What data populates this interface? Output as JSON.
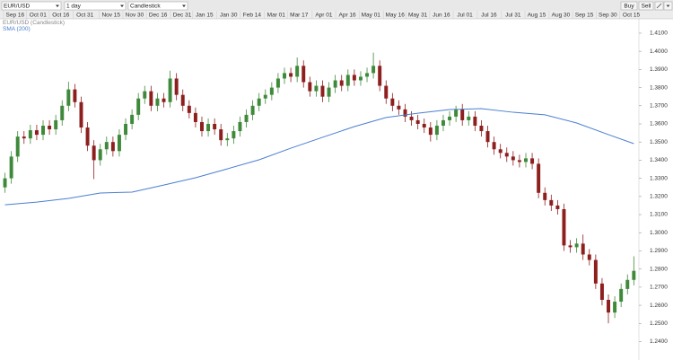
{
  "toolbar": {
    "symbol": "EUR/USD",
    "interval": "1 day",
    "chart_type": "Candlestick",
    "buy": "Buy",
    "sell": "Sell"
  },
  "chart_data": {
    "type": "candlestick",
    "series": [
      {
        "name": "EUR/USD (Candlestick)",
        "up_color": "#3f8a3a",
        "down_color": "#8e1f1f",
        "open": [
          1.325,
          1.33,
          1.342,
          1.353,
          1.352,
          1.3565,
          1.354,
          1.359,
          1.357,
          1.362,
          1.37,
          1.379,
          1.372,
          1.358,
          1.348,
          1.34,
          1.346,
          1.35,
          1.345,
          1.354,
          1.36,
          1.365,
          1.374,
          1.378,
          1.37,
          1.374,
          1.372,
          1.385,
          1.376,
          1.37,
          1.366,
          1.361,
          1.356,
          1.36,
          1.357,
          1.351,
          1.352,
          1.356,
          1.361,
          1.365,
          1.37,
          1.374,
          1.376,
          1.38,
          1.385,
          1.388,
          1.386,
          1.392,
          1.383,
          1.378,
          1.381,
          1.375,
          1.38,
          1.384,
          1.381,
          1.387,
          1.384,
          1.386,
          1.388,
          1.392,
          1.381,
          1.374,
          1.37,
          1.368,
          1.364,
          1.362,
          1.36,
          1.358,
          1.354,
          1.359,
          1.362,
          1.364,
          1.368,
          1.362,
          1.364,
          1.359,
          1.356,
          1.35,
          1.346,
          1.344,
          1.342,
          1.34,
          1.339,
          1.341,
          1.338,
          1.322,
          1.318,
          1.315,
          1.313,
          1.293,
          1.292,
          1.294,
          1.288,
          1.285,
          1.272,
          1.263,
          1.256,
          1.262,
          1.269,
          1.274
        ],
        "high": [
          1.333,
          1.345,
          1.356,
          1.356,
          1.3595,
          1.3595,
          1.362,
          1.362,
          1.365,
          1.373,
          1.3832,
          1.382,
          1.375,
          1.361,
          1.351,
          1.349,
          1.353,
          1.353,
          1.357,
          1.363,
          1.368,
          1.377,
          1.381,
          1.381,
          1.377,
          1.377,
          1.3893,
          1.388,
          1.379,
          1.373,
          1.369,
          1.364,
          1.363,
          1.363,
          1.36,
          1.355,
          1.359,
          1.364,
          1.368,
          1.373,
          1.377,
          1.379,
          1.383,
          1.388,
          1.391,
          1.391,
          1.3966,
          1.395,
          1.386,
          1.384,
          1.384,
          1.383,
          1.387,
          1.387,
          1.39,
          1.39,
          1.389,
          1.391,
          1.3993,
          1.395,
          1.384,
          1.377,
          1.373,
          1.371,
          1.367,
          1.365,
          1.363,
          1.361,
          1.362,
          1.365,
          1.367,
          1.37,
          1.371,
          1.367,
          1.367,
          1.362,
          1.359,
          1.353,
          1.349,
          1.347,
          1.345,
          1.343,
          1.344,
          1.344,
          1.341,
          1.325,
          1.321,
          1.318,
          1.316,
          1.296,
          1.297,
          1.299,
          1.291,
          1.288,
          1.275,
          1.266,
          1.265,
          1.272,
          1.277,
          1.287
        ],
        "low": [
          1.322,
          1.327,
          1.339,
          1.349,
          1.349,
          1.351,
          1.351,
          1.354,
          1.354,
          1.359,
          1.367,
          1.369,
          1.355,
          1.345,
          1.3296,
          1.337,
          1.343,
          1.342,
          1.342,
          1.351,
          1.357,
          1.362,
          1.371,
          1.367,
          1.367,
          1.369,
          1.369,
          1.373,
          1.367,
          1.363,
          1.358,
          1.353,
          1.353,
          1.354,
          1.348,
          1.3477,
          1.349,
          1.353,
          1.358,
          1.362,
          1.367,
          1.371,
          1.373,
          1.377,
          1.382,
          1.383,
          1.383,
          1.38,
          1.375,
          1.375,
          1.372,
          1.372,
          1.377,
          1.378,
          1.378,
          1.381,
          1.381,
          1.383,
          1.385,
          1.378,
          1.371,
          1.367,
          1.365,
          1.361,
          1.359,
          1.357,
          1.355,
          1.3503,
          1.351,
          1.356,
          1.359,
          1.361,
          1.359,
          1.359,
          1.356,
          1.353,
          1.347,
          1.343,
          1.341,
          1.339,
          1.337,
          1.336,
          1.336,
          1.335,
          1.319,
          1.315,
          1.312,
          1.31,
          1.29,
          1.289,
          1.289,
          1.285,
          1.282,
          1.269,
          1.26,
          1.2501,
          1.253,
          1.259,
          1.266,
          1.271
        ],
        "close": [
          1.33,
          1.342,
          1.353,
          1.352,
          1.3565,
          1.354,
          1.359,
          1.357,
          1.362,
          1.37,
          1.379,
          1.372,
          1.358,
          1.348,
          1.34,
          1.346,
          1.35,
          1.345,
          1.354,
          1.36,
          1.365,
          1.374,
          1.378,
          1.37,
          1.374,
          1.372,
          1.385,
          1.376,
          1.37,
          1.366,
          1.361,
          1.356,
          1.36,
          1.357,
          1.351,
          1.352,
          1.356,
          1.361,
          1.365,
          1.37,
          1.374,
          1.376,
          1.38,
          1.385,
          1.388,
          1.386,
          1.392,
          1.383,
          1.378,
          1.381,
          1.375,
          1.38,
          1.384,
          1.381,
          1.387,
          1.384,
          1.386,
          1.388,
          1.392,
          1.381,
          1.374,
          1.37,
          1.368,
          1.364,
          1.362,
          1.36,
          1.358,
          1.354,
          1.359,
          1.362,
          1.364,
          1.368,
          1.362,
          1.364,
          1.359,
          1.356,
          1.35,
          1.346,
          1.344,
          1.342,
          1.34,
          1.339,
          1.341,
          1.338,
          1.322,
          1.318,
          1.315,
          1.313,
          1.293,
          1.292,
          1.294,
          1.288,
          1.285,
          1.272,
          1.263,
          1.256,
          1.262,
          1.269,
          1.274,
          1.279
        ]
      },
      {
        "name": "SMA (200)",
        "type": "line",
        "color": "#4a7fd0",
        "x": [
          0,
          5,
          10,
          15,
          20,
          25,
          30,
          35,
          40,
          45,
          50,
          55,
          60,
          65,
          70,
          75,
          80,
          85,
          90,
          95,
          99
        ],
        "values": [
          1.3154,
          1.3169,
          1.3189,
          1.3219,
          1.3224,
          1.3263,
          1.3303,
          1.3352,
          1.3402,
          1.3466,
          1.3526,
          1.3585,
          1.3635,
          1.3659,
          1.3679,
          1.3684,
          1.3664,
          1.365,
          1.3605,
          1.3541,
          1.3491
        ]
      }
    ],
    "xlim": [
      -0.5,
      99.8
    ],
    "xticks": [
      {
        "value": 1.6,
        "label": "Sep 16"
      },
      {
        "value": 5.2,
        "label": "Oct 01"
      },
      {
        "value": 8.8,
        "label": "Oct 16"
      },
      {
        "value": 12.6,
        "label": "Oct 31"
      },
      {
        "value": 16.7,
        "label": "Nov 15"
      },
      {
        "value": 20.4,
        "label": "Nov 30"
      },
      {
        "value": 24.1,
        "label": "Dec 16"
      },
      {
        "value": 27.9,
        "label": "Dec 31"
      },
      {
        "value": 31.4,
        "label": "Jan 15"
      },
      {
        "value": 35.2,
        "label": "Jan 30"
      },
      {
        "value": 38.9,
        "label": "Feb 14"
      },
      {
        "value": 42.7,
        "label": "Mar 01"
      },
      {
        "value": 46.3,
        "label": "Mar 17"
      },
      {
        "value": 50.2,
        "label": "Apr 01"
      },
      {
        "value": 53.9,
        "label": "Apr 16"
      },
      {
        "value": 57.6,
        "label": "May 01"
      },
      {
        "value": 61.4,
        "label": "May 16"
      },
      {
        "value": 65.0,
        "label": "May 31"
      },
      {
        "value": 68.7,
        "label": "Jun 16"
      },
      {
        "value": 72.4,
        "label": "Jul 01"
      },
      {
        "value": 76.2,
        "label": "Jul 16"
      },
      {
        "value": 80.0,
        "label": "Jul 31"
      },
      {
        "value": 83.7,
        "label": "Aug 15"
      },
      {
        "value": 87.5,
        "label": "Aug 30"
      },
      {
        "value": 91.2,
        "label": "Sep 15"
      },
      {
        "value": 94.9,
        "label": "Sep 30"
      },
      {
        "value": 98.6,
        "label": "Oct 15"
      }
    ],
    "ylim": [
      1.2343,
      1.4174
    ],
    "yticks": [
      {
        "value": 1.41,
        "label": "1.4100"
      },
      {
        "value": 1.4,
        "label": "1.4000"
      },
      {
        "value": 1.39,
        "label": "1.3900"
      },
      {
        "value": 1.38,
        "label": "1.3800"
      },
      {
        "value": 1.37,
        "label": "1.3700"
      },
      {
        "value": 1.36,
        "label": "1.3600"
      },
      {
        "value": 1.35,
        "label": "1.3500"
      },
      {
        "value": 1.34,
        "label": "1.3400"
      },
      {
        "value": 1.33,
        "label": "1.3300"
      },
      {
        "value": 1.32,
        "label": "1.3200"
      },
      {
        "value": 1.31,
        "label": "1.3100"
      },
      {
        "value": 1.3,
        "label": "1.3000"
      },
      {
        "value": 1.29,
        "label": "1.2900"
      },
      {
        "value": 1.28,
        "label": "1.2800"
      },
      {
        "value": 1.27,
        "label": "1.2700"
      },
      {
        "value": 1.26,
        "label": "1.2600"
      },
      {
        "value": 1.25,
        "label": "1.2500"
      },
      {
        "value": 1.24,
        "label": "1.2400"
      }
    ],
    "grid": false
  }
}
